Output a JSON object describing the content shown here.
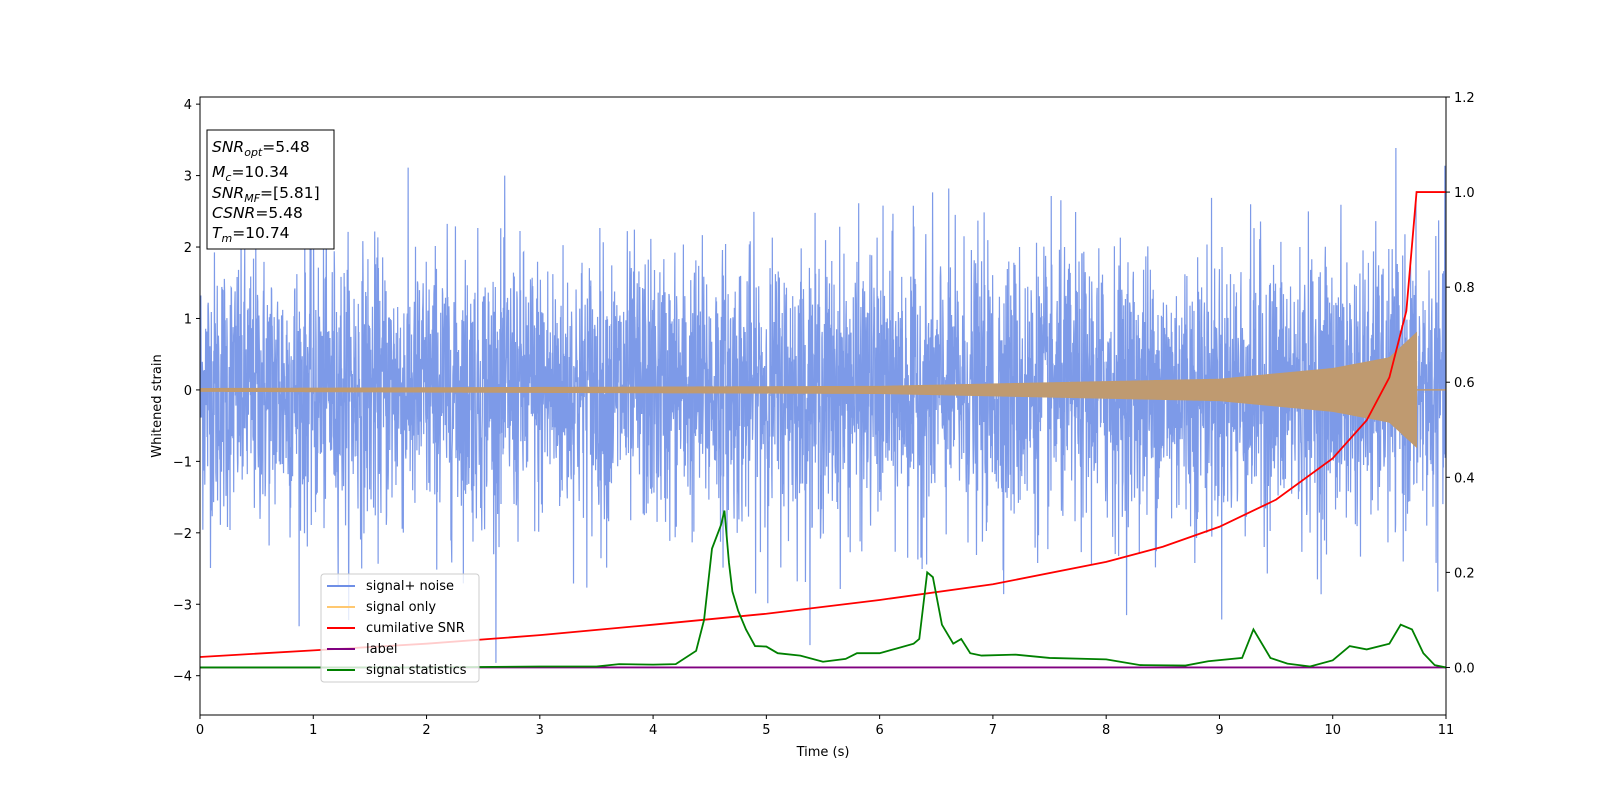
{
  "chart_data": {
    "type": "line",
    "xlabel": "Time (s)",
    "ylabel": "Whitened strain",
    "xlim": [
      0,
      11
    ],
    "ylim": [
      -4.55,
      4.1
    ],
    "y2lim": [
      -0.1,
      1.2
    ],
    "xticks": [
      "0",
      "1",
      "2",
      "3",
      "4",
      "5",
      "6",
      "7",
      "8",
      "9",
      "10",
      "11"
    ],
    "yticks": [
      "−4",
      "−3",
      "−2",
      "−1",
      "0",
      "1",
      "2",
      "3",
      "4"
    ],
    "y2ticks": [
      "0.0",
      "0.2",
      "0.4",
      "0.6",
      "0.8",
      "1.0",
      "1.2"
    ],
    "grid": false,
    "legend_position": "lower-left",
    "stats_box": {
      "snr_opt": {
        "sym": "SNR",
        "sub": "opt",
        "val": "=5.48"
      },
      "mc": {
        "sym": "M",
        "sub": "c",
        "val": "=10.34"
      },
      "snr_mf": {
        "sym": "SNR",
        "sub": "MF",
        "val": "=[5.81]"
      },
      "csnr": {
        "sym": "CSNR",
        "val": "=5.48"
      },
      "tm": {
        "sym": "T",
        "sub": "m",
        "val": "=10.74"
      }
    },
    "series": [
      {
        "name": "signal+ noise",
        "color": "#6f8fe6",
        "axis": "left",
        "description_values": "noise band roughly -1.9 to 1.9 with spikes to about ±3.5 across 0–11 s",
        "envelope": [
          -1.9,
          1.9
        ],
        "spike_extremes": [
          -3.85,
          3.55
        ]
      },
      {
        "name": "signal only",
        "color": "#ffc870",
        "axis": "left",
        "chirp_amplitude": [
          [
            0,
            0.02
          ],
          [
            6,
            0.05
          ],
          [
            9,
            0.15
          ],
          [
            10,
            0.3
          ],
          [
            10.5,
            0.45
          ],
          [
            10.74,
            0.8
          ]
        ]
      },
      {
        "name": "cumilative SNR",
        "color": "#ff0000",
        "axis": "right",
        "points": [
          [
            0,
            0.022
          ],
          [
            1,
            0.036
          ],
          [
            2,
            0.05
          ],
          [
            3,
            0.068
          ],
          [
            4,
            0.09
          ],
          [
            5,
            0.113
          ],
          [
            6,
            0.142
          ],
          [
            7,
            0.175
          ],
          [
            8,
            0.222
          ],
          [
            8.5,
            0.254
          ],
          [
            9,
            0.296
          ],
          [
            9.5,
            0.353
          ],
          [
            10,
            0.44
          ],
          [
            10.3,
            0.52
          ],
          [
            10.5,
            0.61
          ],
          [
            10.65,
            0.75
          ],
          [
            10.74,
            1.0
          ],
          [
            11,
            1.0
          ]
        ]
      },
      {
        "name": "label",
        "color": "#800080",
        "axis": "right",
        "points": [
          [
            0,
            0.0
          ],
          [
            11,
            0.0
          ]
        ]
      },
      {
        "name": "signal statistics",
        "color": "#008000",
        "axis": "right",
        "points": [
          [
            0,
            0.0
          ],
          [
            1,
            0.0
          ],
          [
            2,
            0.0
          ],
          [
            3,
            0.002
          ],
          [
            3.5,
            0.002
          ],
          [
            3.7,
            0.007
          ],
          [
            4.0,
            0.006
          ],
          [
            4.2,
            0.007
          ],
          [
            4.38,
            0.035
          ],
          [
            4.45,
            0.1
          ],
          [
            4.52,
            0.25
          ],
          [
            4.6,
            0.3
          ],
          [
            4.63,
            0.33
          ],
          [
            4.67,
            0.22
          ],
          [
            4.7,
            0.16
          ],
          [
            4.75,
            0.12
          ],
          [
            4.82,
            0.08
          ],
          [
            4.9,
            0.045
          ],
          [
            5.0,
            0.044
          ],
          [
            5.1,
            0.03
          ],
          [
            5.3,
            0.025
          ],
          [
            5.5,
            0.012
          ],
          [
            5.7,
            0.018
          ],
          [
            5.8,
            0.03
          ],
          [
            6.0,
            0.03
          ],
          [
            6.15,
            0.04
          ],
          [
            6.3,
            0.05
          ],
          [
            6.35,
            0.06
          ],
          [
            6.42,
            0.2
          ],
          [
            6.47,
            0.19
          ],
          [
            6.55,
            0.09
          ],
          [
            6.65,
            0.05
          ],
          [
            6.72,
            0.06
          ],
          [
            6.8,
            0.03
          ],
          [
            6.9,
            0.025
          ],
          [
            7.2,
            0.027
          ],
          [
            7.5,
            0.02
          ],
          [
            8.0,
            0.017
          ],
          [
            8.3,
            0.005
          ],
          [
            8.7,
            0.004
          ],
          [
            8.9,
            0.013
          ],
          [
            9.2,
            0.02
          ],
          [
            9.3,
            0.08
          ],
          [
            9.45,
            0.02
          ],
          [
            9.6,
            0.008
          ],
          [
            9.8,
            0.002
          ],
          [
            10.0,
            0.015
          ],
          [
            10.15,
            0.045
          ],
          [
            10.3,
            0.038
          ],
          [
            10.5,
            0.05
          ],
          [
            10.6,
            0.09
          ],
          [
            10.7,
            0.08
          ],
          [
            10.8,
            0.03
          ],
          [
            10.9,
            0.005
          ],
          [
            11,
            0.0
          ]
        ]
      }
    ]
  }
}
